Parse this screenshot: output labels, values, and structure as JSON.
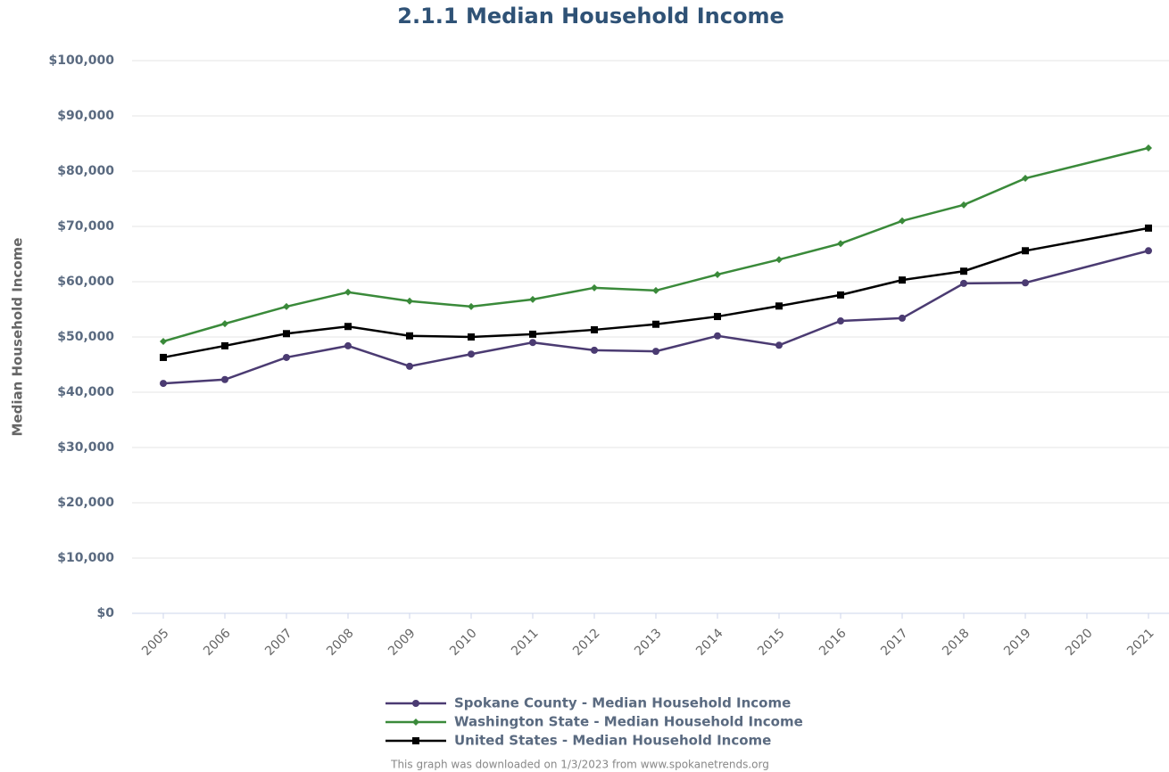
{
  "chart_data": {
    "type": "line",
    "title": "2.1.1 Median Household Income",
    "y_label": "Median Household Income",
    "footnote": "This graph was downloaded on 1/3/2023 from www.spokanetrends.org",
    "x": [
      2005,
      2006,
      2007,
      2008,
      2009,
      2010,
      2011,
      2012,
      2013,
      2014,
      2015,
      2016,
      2017,
      2018,
      2019,
      2021
    ],
    "xlim": [
      2005,
      2021
    ],
    "xticks": [
      2005,
      2006,
      2007,
      2008,
      2009,
      2010,
      2011,
      2012,
      2013,
      2014,
      2015,
      2016,
      2017,
      2018,
      2019,
      2020,
      2021
    ],
    "ylim": [
      0,
      100000
    ],
    "yticks": [
      {
        "value": 0,
        "label": "$0"
      },
      {
        "value": 10000,
        "label": "$10,000"
      },
      {
        "value": 20000,
        "label": "$20,000"
      },
      {
        "value": 30000,
        "label": "$30,000"
      },
      {
        "value": 40000,
        "label": "$40,000"
      },
      {
        "value": 50000,
        "label": "$50,000"
      },
      {
        "value": 60000,
        "label": "$60,000"
      },
      {
        "value": 70000,
        "label": "$70,000"
      },
      {
        "value": 80000,
        "label": "$80,000"
      },
      {
        "value": 90000,
        "label": "$90,000"
      },
      {
        "value": 100000,
        "label": "$100,000"
      }
    ],
    "grid": true,
    "series": [
      {
        "name": "Spokane County - Median Household Income",
        "color": "#4b3b72",
        "marker": "circle",
        "values": [
          41600,
          42300,
          46300,
          48400,
          44700,
          46900,
          49000,
          47600,
          47400,
          50200,
          48500,
          52900,
          53400,
          59700,
          59800,
          65600
        ]
      },
      {
        "name": "Washington State - Median Household Income",
        "color": "#3a8a3a",
        "marker": "diamond",
        "values": [
          49200,
          52400,
          55500,
          58100,
          56500,
          55500,
          56800,
          58900,
          58400,
          61300,
          64000,
          66900,
          71000,
          73900,
          78700,
          84200
        ]
      },
      {
        "name": "United States - Median Household Income",
        "color": "#000000",
        "marker": "square",
        "values": [
          46300,
          48400,
          50600,
          51900,
          50200,
          50000,
          50500,
          51300,
          52300,
          53700,
          55600,
          57600,
          60300,
          61900,
          65600,
          69700
        ]
      }
    ]
  }
}
